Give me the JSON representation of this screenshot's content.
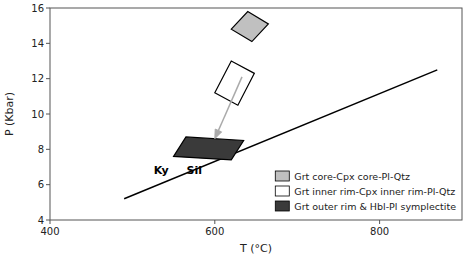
{
  "chart_data": {
    "type": "polygon",
    "xlabel": "T (°C)",
    "ylabel": "P (Kbar)",
    "xlim": [
      400,
      900
    ],
    "ylim": [
      4,
      16
    ],
    "xticks": [
      400,
      600,
      800
    ],
    "yticks": [
      4,
      6,
      8,
      10,
      12,
      14,
      16
    ],
    "legend": "right",
    "series": [
      {
        "name": "Grt core-Cpx core-Pl-Qtz",
        "type": "polygon",
        "color": "#c0c0c0",
        "x": [
          620,
          640,
          665,
          645
        ],
        "y": [
          14.8,
          15.8,
          15.1,
          14.1
        ]
      },
      {
        "name": "Grt inner rim-Cpx inner rim-Pl-Qtz",
        "type": "polygon",
        "color": "#ffffff",
        "x": [
          600,
          620,
          648,
          628
        ],
        "y": [
          11.2,
          13.0,
          12.3,
          10.5
        ]
      },
      {
        "name": "Grt outer rim & Hbl-Pl symplectite",
        "type": "polygon",
        "color": "#3a3a3a",
        "x": [
          550,
          565,
          635,
          620
        ],
        "y": [
          7.6,
          8.7,
          8.5,
          7.4
        ]
      },
      {
        "type": "line",
        "color": "#000000",
        "x": [
          490,
          870
        ],
        "y": [
          5.2,
          12.5
        ]
      },
      {
        "type": "arrow",
        "color": "#aaaaaa",
        "x": [
          633,
          600
        ],
        "y": [
          12.1,
          8.6
        ]
      }
    ],
    "annotations": [
      {
        "text": "Ky",
        "x": 535,
        "y": 6.85
      },
      {
        "text": "Sil",
        "x": 575,
        "y": 6.85
      }
    ]
  }
}
